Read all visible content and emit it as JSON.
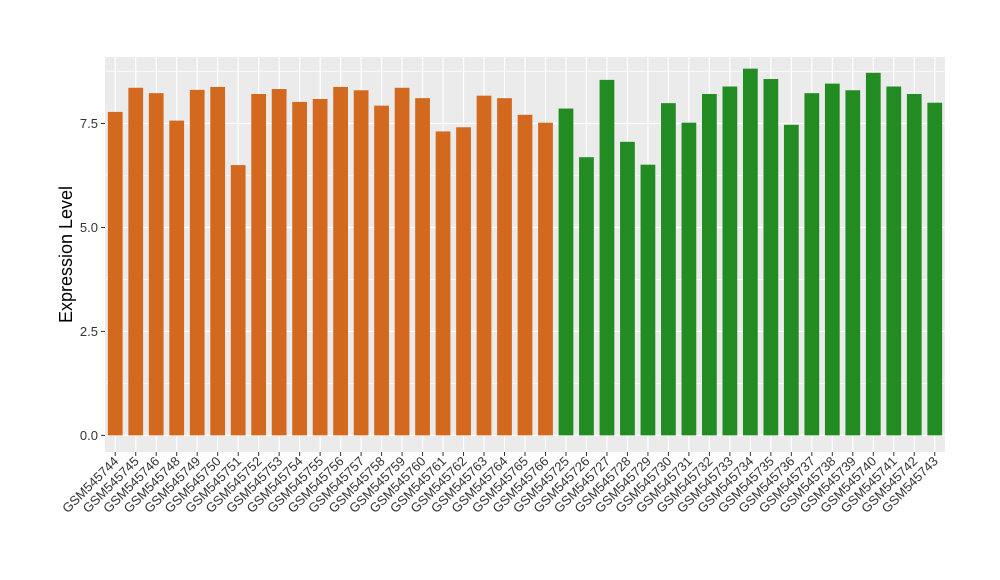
{
  "chart_data": {
    "type": "bar",
    "ylabel": "Expression Level",
    "xlabel": "",
    "ylim": [
      -0.4,
      9.1
    ],
    "yticks": [
      0.0,
      2.5,
      5.0,
      7.5
    ],
    "ytick_labels": [
      "0.0",
      "2.5",
      "5.0",
      "7.5"
    ],
    "grid": true,
    "legend": "none",
    "colors": {
      "group_a": "#D2691E",
      "group_b": "#228B22",
      "panel": "#EBEBEB",
      "grid": "#FFFFFF"
    },
    "categories": [
      "GSM545744",
      "GSM545745",
      "GSM545746",
      "GSM545748",
      "GSM545749",
      "GSM545750",
      "GSM545751",
      "GSM545752",
      "GSM545753",
      "GSM545754",
      "GSM545755",
      "GSM545756",
      "GSM545757",
      "GSM545758",
      "GSM545759",
      "GSM545760",
      "GSM545761",
      "GSM545762",
      "GSM545763",
      "GSM545764",
      "GSM545765",
      "GSM545766",
      "GSM545725",
      "GSM545726",
      "GSM545727",
      "GSM545728",
      "GSM545729",
      "GSM545730",
      "GSM545731",
      "GSM545732",
      "GSM545733",
      "GSM545734",
      "GSM545735",
      "GSM545736",
      "GSM545737",
      "GSM545738",
      "GSM545739",
      "GSM545740",
      "GSM545741",
      "GSM545742",
      "GSM545743"
    ],
    "values": [
      7.78,
      8.36,
      8.23,
      7.57,
      8.31,
      8.38,
      6.5,
      8.21,
      8.33,
      8.02,
      8.09,
      8.38,
      8.3,
      7.93,
      8.36,
      8.11,
      7.31,
      7.41,
      8.17,
      8.11,
      7.71,
      7.52,
      7.86,
      6.69,
      8.55,
      7.06,
      6.51,
      7.99,
      7.52,
      8.21,
      8.39,
      8.82,
      8.57,
      7.47,
      8.23,
      8.46,
      8.3,
      8.72,
      8.39,
      8.21,
      8.0
    ],
    "groups": [
      "group_a",
      "group_a",
      "group_a",
      "group_a",
      "group_a",
      "group_a",
      "group_a",
      "group_a",
      "group_a",
      "group_a",
      "group_a",
      "group_a",
      "group_a",
      "group_a",
      "group_a",
      "group_a",
      "group_a",
      "group_a",
      "group_a",
      "group_a",
      "group_a",
      "group_a",
      "group_b",
      "group_b",
      "group_b",
      "group_b",
      "group_b",
      "group_b",
      "group_b",
      "group_b",
      "group_b",
      "group_b",
      "group_b",
      "group_b",
      "group_b",
      "group_b",
      "group_b",
      "group_b",
      "group_b",
      "group_b",
      "group_b"
    ]
  }
}
